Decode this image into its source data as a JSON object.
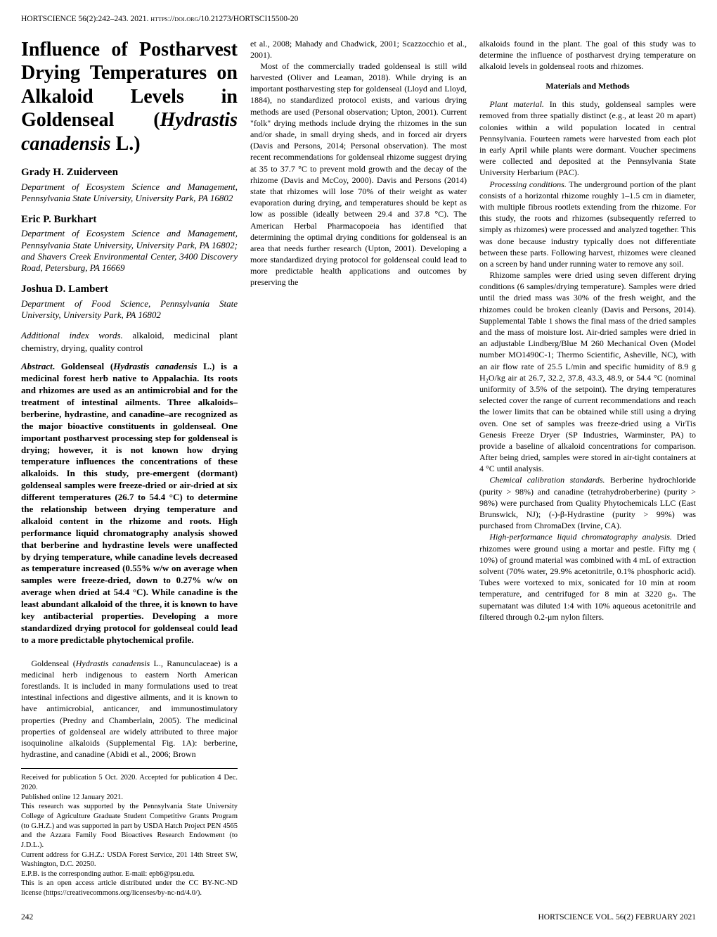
{
  "journal_line": "HORTSCIENCE 56(2):242–243. 2021. https://doi.org/10.21273/HORTSCI15500-20",
  "title": "Influence of Postharvest Drying Temperatures on Alkaloid Levels in Goldenseal (Hydrastis canadensis L.)",
  "title_plain": "Influence of Postharvest Drying Temperatures on Alkaloid Levels in Goldenseal (",
  "title_italic": "Hydrastis canadensis",
  "title_end": " L.)",
  "authors": [
    {
      "name": "Grady H. Zuiderveen",
      "affiliation": "Department of Ecosystem Science and Management, Pennsylvania State University, University Park, PA 16802"
    },
    {
      "name": "Eric P. Burkhart",
      "affiliation": "Department of Ecosystem Science and Management, Pennsylvania State University, University Park, PA 16802; and Shavers Creek Environmental Center, 3400 Discovery Road, Petersburg, PA 16669"
    },
    {
      "name": "Joshua D. Lambert",
      "affiliation": "Department of Food Science, Pennsylvania State University, University Park, PA 16802"
    }
  ],
  "index_words_label": "Additional index words.",
  "index_words": " alkaloid, medicinal plant chemistry, drying, quality control",
  "abstract_label": "Abstract",
  "abstract_body_pre": ". Goldenseal (",
  "abstract_italic1": "Hydrastis canadensis",
  "abstract_body_post": " L.) is a medicinal forest herb native to Appalachia. Its roots and rhizomes are used as an antimicrobial and for the treatment of intestinal ailments. Three alkaloids–berberine, hydrastine, and canadine–are recognized as the major bioactive constituents in goldenseal. One important postharvest processing step for goldenseal is drying; however, it is not known how drying temperature influences the concentrations of these alkaloids. In this study, pre-emergent (dormant) goldenseal samples were freeze-dried or air-dried at six different temperatures (26.7 to 54.4 °C) to determine the relationship between drying temperature and alkaloid content in the rhizome and roots. High performance liquid chromatography analysis showed that berberine and hydrastine levels were unaffected by drying temperature, while canadine levels decreased as temperature increased (0.55% w/w on average when samples were freeze-dried, down to 0.27% w/w on average when dried at 54.4 °C). While canadine is the least abundant alkaloid of the three, it is known to have key antibacterial properties. Developing a more standardized drying protocol for goldenseal could lead to a more predictable phytochemical profile.",
  "intro_p1_pre": "Goldenseal (",
  "intro_p1_italic": "Hydrastis canadensis",
  "intro_p1_post": " L., Ranunculaceae) is a medicinal herb indigenous to eastern North American forestlands. It is included in many formulations used to treat intestinal infections and digestive ailments, and it is known to have antimicrobial, anticancer, and immunostimulatory properties (Predny and Chamberlain, 2005). The medicinal properties of goldenseal are widely attributed to three major isoquinoline alkaloids (Supplemental Fig. 1A): berberine, hydrastine, and canadine (Abidi et al., 2006; Brown",
  "intro_p1_cont": "et al., 2008; Mahady and Chadwick, 2001; Scazzocchio et al., 2001).",
  "intro_p2": "Most of the commercially traded goldenseal is still wild harvested (Oliver and Leaman, 2018). While drying is an important postharvesting step for goldenseal (Lloyd and Lloyd, 1884), no standardized protocol exists, and various drying methods are used (Personal observation; Upton, 2001). Current \"folk\" drying methods include drying the rhizomes in the sun and/or shade, in small drying sheds, and in forced air dryers (Davis and Persons, 2014; Personal observation). The most recent recommendations for goldenseal rhizome suggest drying at 35 to 37.7 °C to prevent mold growth and the decay of the rhizome (Davis and McCoy, 2000). Davis and Persons (2014) state that rhizomes will lose 70% of their weight as water evaporation during drying, and temperatures should be kept as low as possible (ideally between 29.4 and 37.8 °C). The American Herbal Pharmacopoeia has identified that determining the optimal drying conditions for goldenseal is an area that needs further research (Upton, 2001). Developing a more standardized drying protocol for goldenseal could lead to more predictable health applications and outcomes by preserving the",
  "col3_intro": "alkaloids found in the plant. The goal of this study was to determine the influence of postharvest drying temperature on alkaloid levels in goldenseal roots and rhizomes.",
  "materials_heading": "Materials and Methods",
  "plant_material_label": "Plant material.",
  "plant_material_body": " In this study, goldenseal samples were removed from three spatially distinct (e.g., at least 20 m apart) colonies within a wild population located in central Pennsylvania. Fourteen ramets were harvested from each plot in early April while plants were dormant. Voucher specimens were collected and deposited at the Pennsylvania State University Herbarium (PAC).",
  "processing_label": "Processing conditions.",
  "processing_body": " The underground portion of the plant consists of a horizontal rhizome roughly 1–1.5 cm in diameter, with multiple fibrous rootlets extending from the rhizome. For this study, the roots and rhizomes (subsequently referred to simply as rhizomes) were processed and analyzed together. This was done because industry typically does not differentiate between these parts. Following harvest, rhizomes were cleaned on a screen by hand under running water to remove any soil.",
  "rhizome_body": "Rhizome samples were dried using seven different drying conditions (6 samples/drying temperature). Samples were dried until the dried mass was 30% of the fresh weight, and the rhizomes could be broken cleanly (Davis and Persons, 2014). Supplemental Table 1 shows the final mass of the dried samples and the mass of moisture lost. Air-dried samples were dried in an adjustable Lindberg/Blue M 260 Mechanical Oven (Model number MO1490C-1; Thermo Scientific, Asheville, NC), with an air flow rate of 25.5 L/min and specific humidity of 8.9 g H₂O/kg air at 26.7, 32.2, 37.8, 43.3, 48.9, or 54.4 °C (nominal uniformity of 3.5% of the setpoint). The drying temperatures selected cover the range of current recommendations and reach the lower limits that can be obtained while still using a drying oven. One set of samples was freeze-dried using a VirTis Genesis Freeze Dryer (SP Industries, Warminster, PA) to provide a baseline of alkaloid concentrations for comparison. After being dried, samples were stored in air-tight containers at 4 °C until analysis.",
  "chemical_label": "Chemical calibration standards.",
  "chemical_body": " Berberine hydrochloride (purity > 98%) and canadine (tetrahydroberberine) (purity > 98%) were purchased from Quality Phytochemicals LLC (East Brunswick, NJ); (-)-β-Hydrastine (purity > 99%) was purchased from ChromaDex (Irvine, CA).",
  "hplc_label": "High-performance liquid chromatography analysis.",
  "hplc_body": " Dried rhizomes were ground using a mortar and pestle. Fifty mg (  10%) of ground material was combined with 4 mL of extraction solvent (70% water, 29.9% acetonitrile, 0.1% phosphoric acid). Tubes were vortexed to mix, sonicated for 10 min at room temperature, and centrifuged for 8 min at 3220 gₙ. The supernatant was diluted 1:4 with 10% aqueous acetonitrile and filtered through 0.2-μm nylon filters.",
  "footnotes": {
    "received": "Received for publication 5 Oct. 2020. Accepted for publication 4 Dec. 2020.",
    "published": "Published online 12 January 2021.",
    "research_support": "This research was supported by the Pennsylvania State University College of Agriculture Graduate Student Competitive Grants Program (to G.H.Z.) and was supported in part by USDA Hatch Project PEN 4565 and the Azzara Family Food Bioactives Research Endowment (to J.D.L.).",
    "current_address": "Current address for G.H.Z.: USDA Forest Service, 201 14th Street SW, Washington, D.C. 20250.",
    "corresponding": "E.P.B. is the corresponding author. E-mail: epb6@psu.edu.",
    "open_access": "This is an open access article distributed under the CC BY-NC-ND license (https://creativecommons.org/licenses/by-nc-nd/4.0/)."
  },
  "page_number": "242",
  "footer_right": "HORTSCIENCE VOL. 56(2) FEBRUARY 2021"
}
